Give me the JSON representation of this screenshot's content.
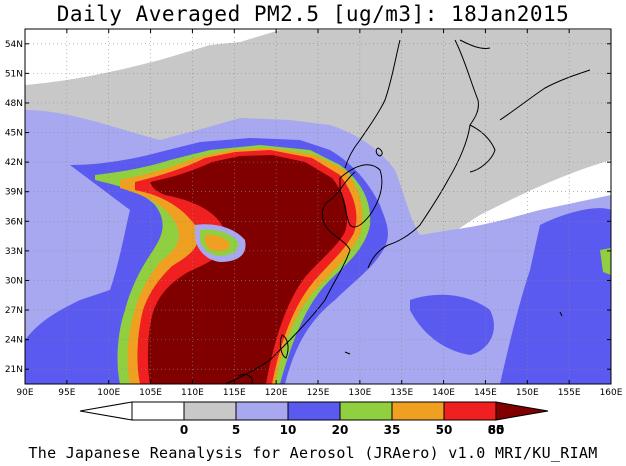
{
  "title": "Daily Averaged PM2.5 [ug/m3]: 18Jan2015",
  "lon_labels": [
    "90E",
    "95E",
    "100E",
    "105E",
    "110E",
    "115E",
    "120E",
    "125E",
    "130E",
    "135E",
    "140E",
    "145E",
    "150E",
    "155E",
    "160E"
  ],
  "lat_labels": [
    "21N",
    "24N",
    "27N",
    "30N",
    "33N",
    "36N",
    "39N",
    "42N",
    "45N",
    "48N",
    "51N",
    "54N"
  ],
  "colorbar": {
    "labels": [
      "0",
      "5",
      "10",
      "20",
      "35",
      "50",
      "65",
      "80"
    ],
    "colors": [
      "#ffffff",
      "#c8c8c8",
      "#a8a8f0",
      "#5a5af0",
      "#90d040",
      "#f0a020",
      "#f02020",
      "#800000"
    ]
  },
  "credit": "The Japanese Reanalysis for Aerosol (JRAero) v1.0 MRI/KU_RIAM"
}
